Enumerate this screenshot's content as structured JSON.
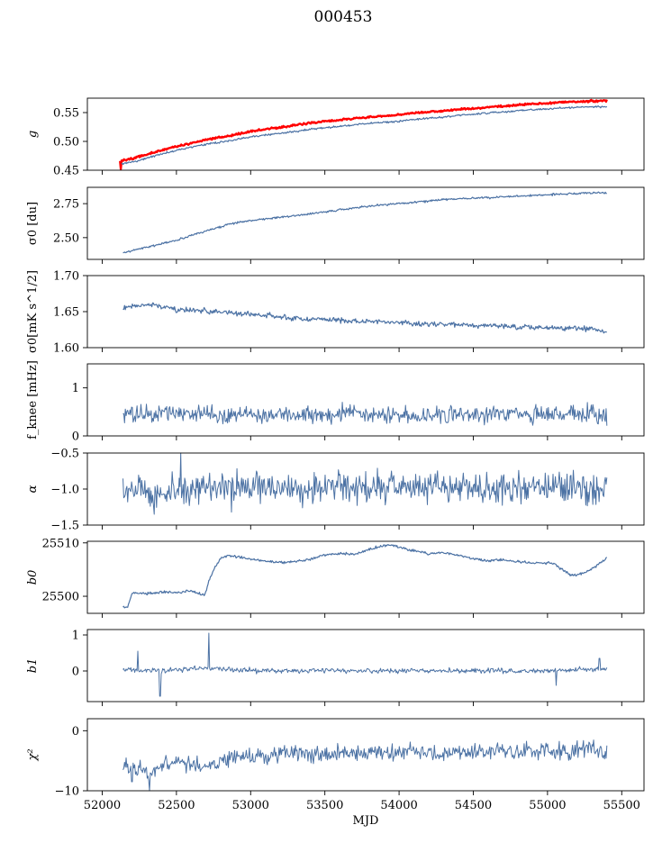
{
  "figure_title": "000453",
  "chart_data": [
    {
      "type": "line",
      "ylabel": "g",
      "ylim": [
        0.45,
        0.575
      ],
      "yticks": [
        0.45,
        0.5,
        0.55
      ],
      "ytick_labels": [
        "0.45",
        "0.50",
        "0.55"
      ],
      "xlim": [
        51900,
        55650
      ],
      "series": [
        {
          "name": "g model",
          "color": "#ff0000",
          "width": 2.4,
          "x": [
            52120,
            52200,
            52300,
            52400,
            52500,
            52600,
            52700,
            52800,
            52900,
            53000,
            53100,
            53200,
            53300,
            53400,
            53500,
            53600,
            53700,
            53800,
            53900,
            54000,
            54100,
            54200,
            54300,
            54400,
            54500,
            54600,
            54700,
            54800,
            54900,
            55000,
            55100,
            55200,
            55300,
            55400
          ],
          "values": [
            0.466,
            0.47,
            0.477,
            0.485,
            0.491,
            0.497,
            0.503,
            0.507,
            0.512,
            0.517,
            0.521,
            0.524,
            0.528,
            0.532,
            0.535,
            0.537,
            0.54,
            0.542,
            0.544,
            0.546,
            0.549,
            0.551,
            0.553,
            0.555,
            0.557,
            0.559,
            0.561,
            0.563,
            0.565,
            0.566,
            0.568,
            0.569,
            0.57,
            0.571
          ]
        },
        {
          "name": "g",
          "color": "#4c72a4",
          "width": 1.2,
          "x": [
            52130,
            52200,
            52300,
            52400,
            52500,
            52600,
            52700,
            52800,
            52900,
            53000,
            53100,
            53200,
            53300,
            53400,
            53500,
            53600,
            53700,
            53800,
            53900,
            54000,
            54100,
            54200,
            54300,
            54400,
            54500,
            54600,
            54700,
            54800,
            54900,
            55000,
            55100,
            55200,
            55300,
            55400
          ],
          "values": [
            0.462,
            0.464,
            0.471,
            0.478,
            0.484,
            0.49,
            0.495,
            0.499,
            0.503,
            0.508,
            0.511,
            0.514,
            0.517,
            0.521,
            0.524,
            0.526,
            0.529,
            0.531,
            0.533,
            0.535,
            0.538,
            0.54,
            0.542,
            0.545,
            0.547,
            0.549,
            0.551,
            0.553,
            0.555,
            0.556,
            0.558,
            0.559,
            0.56,
            0.56
          ]
        }
      ]
    },
    {
      "type": "line",
      "ylabel": "σ0 [du]",
      "ylim": [
        2.34,
        2.87
      ],
      "yticks": [
        2.5,
        2.75
      ],
      "ytick_labels": [
        "2.50",
        "2.75"
      ],
      "xlim": [
        51900,
        55650
      ],
      "series": [
        {
          "name": "sigma0 du",
          "color": "#4c72a4",
          "width": 1.2,
          "x": [
            52140,
            52300,
            52500,
            52700,
            52900,
            53100,
            53300,
            53500,
            53700,
            53900,
            54100,
            54300,
            54500,
            54700,
            54900,
            55100,
            55300,
            55400
          ],
          "values": [
            2.39,
            2.43,
            2.48,
            2.55,
            2.61,
            2.64,
            2.66,
            2.69,
            2.72,
            2.74,
            2.76,
            2.78,
            2.79,
            2.8,
            2.81,
            2.82,
            2.83,
            2.83
          ]
        }
      ]
    },
    {
      "type": "line",
      "ylabel": "σ0[mK s^1/2]",
      "ylim": [
        1.6,
        1.7
      ],
      "yticks": [
        1.6,
        1.65,
        1.7
      ],
      "ytick_labels": [
        "1.60",
        "1.65",
        "1.70"
      ],
      "xlim": [
        51900,
        55650
      ],
      "series": [
        {
          "name": "sigma0 mK",
          "color": "#4c72a4",
          "width": 1.2,
          "x": [
            52140,
            52300,
            52500,
            52700,
            52900,
            53100,
            53300,
            53500,
            53700,
            53900,
            54100,
            54300,
            54500,
            54700,
            54900,
            55100,
            55300,
            55400
          ],
          "values": [
            1.655,
            1.66,
            1.653,
            1.651,
            1.647,
            1.645,
            1.641,
            1.639,
            1.637,
            1.636,
            1.633,
            1.632,
            1.631,
            1.63,
            1.628,
            1.627,
            1.626,
            1.622
          ]
        }
      ]
    },
    {
      "type": "line",
      "ylabel": "f_knee [mHz]",
      "ylim": [
        0,
        1.5
      ],
      "yticks": [
        0,
        1
      ],
      "ytick_labels": [
        "0",
        "1"
      ],
      "xlim": [
        51900,
        55650
      ],
      "series": [
        {
          "name": "fknee",
          "color": "#4c72a4",
          "width": 1.0,
          "x": [
            52140,
            52400,
            52700,
            53000,
            53300,
            53600,
            53900,
            54200,
            54500,
            54800,
            55100,
            55400
          ],
          "values": [
            0.45,
            0.47,
            0.46,
            0.44,
            0.45,
            0.46,
            0.45,
            0.44,
            0.45,
            0.46,
            0.44,
            0.45
          ]
        }
      ]
    },
    {
      "type": "line",
      "ylabel": "α",
      "ylim": [
        -1.5,
        -0.5
      ],
      "yticks": [
        -1.5,
        -1.0,
        -0.5
      ],
      "ytick_labels": [
        "−1.5",
        "−1.0",
        "−0.5"
      ],
      "xlim": [
        51900,
        55650
      ],
      "series": [
        {
          "name": "alpha",
          "color": "#4c72a4",
          "width": 1.0,
          "x": [
            52140,
            52400,
            52700,
            53000,
            53300,
            53600,
            53900,
            54200,
            54500,
            54800,
            55100,
            55400
          ],
          "values": [
            -1.05,
            -1.02,
            -0.98,
            -0.97,
            -0.99,
            -0.96,
            -0.98,
            -0.97,
            -0.99,
            -0.97,
            -0.98,
            -1.0
          ]
        }
      ]
    },
    {
      "type": "line",
      "ylabel": "b0",
      "ylim": [
        25496.8,
        25510.3
      ],
      "yticks": [
        25500,
        25510
      ],
      "ytick_labels": [
        "25500",
        "25510"
      ],
      "xlim": [
        51900,
        55650
      ],
      "series": [
        {
          "name": "b0",
          "color": "#4c72a4",
          "width": 1.2,
          "x": [
            52140,
            52170,
            52200,
            52300,
            52400,
            52500,
            52600,
            52690,
            52720,
            52750,
            52800,
            52850,
            52900,
            53000,
            53100,
            53200,
            53300,
            53400,
            53500,
            53600,
            53700,
            53800,
            53900,
            53960,
            54000,
            54100,
            54200,
            54300,
            54400,
            54500,
            54600,
            54700,
            54800,
            54900,
            55000,
            55050,
            55100,
            55150,
            55200,
            55300,
            55400
          ],
          "values": [
            25498.0,
            25497.9,
            25500.5,
            25500.5,
            25500.8,
            25500.7,
            25501.0,
            25500.1,
            25503.0,
            25505.0,
            25507.2,
            25507.6,
            25507.5,
            25507.0,
            25506.6,
            25506.3,
            25506.5,
            25506.9,
            25507.8,
            25508.0,
            25507.9,
            25508.8,
            25509.5,
            25509.6,
            25509.2,
            25508.5,
            25508.0,
            25508.1,
            25507.7,
            25507.0,
            25506.7,
            25506.8,
            25506.5,
            25506.2,
            25506.3,
            25506.0,
            25505.0,
            25504.0,
            25504.0,
            25505.0,
            25507.2
          ]
        }
      ]
    },
    {
      "type": "line",
      "ylabel": "b1",
      "ylim": [
        -0.85,
        1.15
      ],
      "yticks": [
        0,
        1
      ],
      "ytick_labels": [
        "0",
        "1"
      ],
      "xlim": [
        51900,
        55650
      ],
      "series": [
        {
          "name": "b1",
          "color": "#4c72a4",
          "width": 1.0,
          "x": [
            52140,
            52400,
            52700,
            53000,
            53300,
            53600,
            53900,
            54200,
            54500,
            54800,
            55100,
            55400
          ],
          "values": [
            0.05,
            0.0,
            0.08,
            0.02,
            0.0,
            0.01,
            0.0,
            0.0,
            0.01,
            0.0,
            0.02,
            0.05
          ]
        }
      ]
    },
    {
      "type": "line",
      "ylabel": "χ²",
      "ylim": [
        -10,
        2
      ],
      "yticks": [
        -10,
        0
      ],
      "ytick_labels": [
        "−10",
        "0"
      ],
      "xlim": [
        51900,
        55650
      ],
      "xticks": [
        52000,
        52500,
        53000,
        53500,
        54000,
        54500,
        55000,
        55500
      ],
      "xtick_labels": [
        "52000",
        "52500",
        "53000",
        "53500",
        "54000",
        "54500",
        "55000",
        "55500"
      ],
      "xlabel": "MJD",
      "series": [
        {
          "name": "chi2",
          "color": "#4c72a4",
          "width": 1.0,
          "x": [
            52140,
            52300,
            52500,
            52700,
            52900,
            53100,
            53300,
            53500,
            53700,
            53900,
            54100,
            54300,
            54500,
            54700,
            54900,
            55100,
            55300,
            55400
          ],
          "values": [
            -5.5,
            -7.0,
            -5.0,
            -6.0,
            -4.0,
            -4.5,
            -3.5,
            -4.0,
            -3.5,
            -3.8,
            -3.4,
            -3.8,
            -3.3,
            -3.6,
            -3.2,
            -3.5,
            -3.0,
            -3.6
          ]
        }
      ]
    }
  ]
}
